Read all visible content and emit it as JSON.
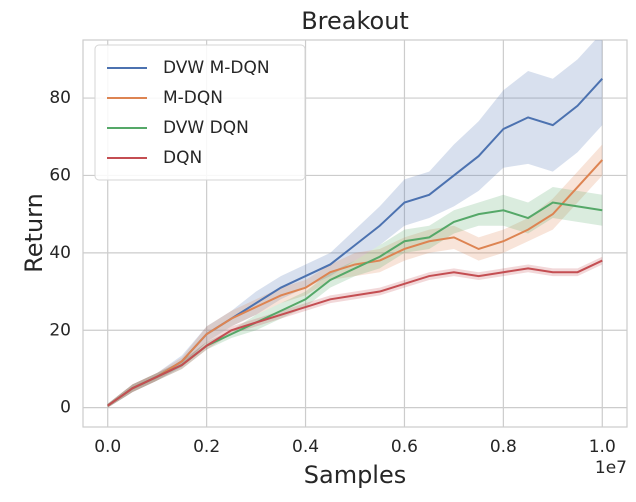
{
  "chart_data": {
    "type": "line",
    "title": "Breakout",
    "xlabel": "Samples",
    "ylabel": "Return",
    "x_offset_text": "1e7",
    "x": [
      0,
      0.05,
      0.1,
      0.15,
      0.2,
      0.25,
      0.3,
      0.35,
      0.4,
      0.45,
      0.5,
      0.55,
      0.6,
      0.65,
      0.7,
      0.75,
      0.8,
      0.85,
      0.9,
      0.95,
      1.0
    ],
    "series": [
      {
        "name": "DVW M-DQN",
        "color": "#4c72b0",
        "values": [
          0.5,
          5,
          8,
          12,
          19,
          23,
          27,
          31,
          34,
          37,
          42,
          47,
          53,
          55,
          60,
          65,
          72,
          75,
          73,
          78,
          85
        ],
        "lower": [
          0,
          4,
          7,
          10.5,
          17,
          21,
          24,
          28,
          31,
          34,
          38,
          42,
          47,
          49,
          52,
          56,
          62,
          63,
          61,
          66,
          73
        ],
        "upper": [
          1,
          6,
          9,
          13.5,
          21,
          25,
          30,
          34,
          37,
          40,
          46,
          52,
          59,
          61,
          68,
          74,
          82,
          87,
          85,
          90,
          97
        ]
      },
      {
        "name": "M-DQN",
        "color": "#dd8452",
        "values": [
          0.5,
          5,
          8,
          12,
          19,
          23,
          26,
          29,
          31,
          35,
          37,
          38,
          41,
          43,
          44,
          41,
          43,
          46,
          50,
          57,
          64
        ],
        "lower": [
          0,
          4,
          7,
          11,
          17,
          21,
          24,
          27,
          29,
          33,
          34,
          35,
          38,
          40,
          41,
          38,
          40,
          43,
          46,
          53,
          60
        ],
        "upper": [
          1,
          6,
          9,
          13,
          21,
          25,
          28,
          31,
          33,
          37,
          40,
          41,
          44,
          46,
          47,
          44,
          46,
          49,
          54,
          61,
          68
        ]
      },
      {
        "name": "DVW DQN",
        "color": "#55a868",
        "values": [
          0.5,
          5,
          8,
          11,
          16,
          19,
          22,
          25,
          28,
          33,
          36,
          39,
          43,
          44,
          48,
          50,
          51,
          49,
          53,
          52,
          51
        ],
        "lower": [
          0,
          4,
          7,
          10,
          15,
          18,
          20,
          23,
          26,
          31,
          34,
          36,
          40,
          41,
          45,
          47,
          47,
          45,
          49,
          48,
          47
        ],
        "upper": [
          1,
          6,
          9,
          12,
          17,
          20,
          24,
          27,
          30,
          35,
          38,
          42,
          46,
          47,
          51,
          53,
          55,
          53,
          57,
          56,
          55
        ]
      },
      {
        "name": "DQN",
        "color": "#c44e52",
        "values": [
          0.5,
          5,
          8,
          11,
          16,
          20,
          22,
          24,
          26,
          28,
          29,
          30,
          32,
          34,
          35,
          34,
          35,
          36,
          35,
          35,
          38
        ],
        "lower": [
          0,
          4,
          7,
          10,
          15,
          19,
          21,
          23,
          25,
          27,
          28,
          29,
          31,
          33,
          34,
          33,
          34,
          35,
          34,
          34,
          37
        ],
        "upper": [
          1,
          6,
          9,
          12,
          17,
          21,
          23,
          25,
          27,
          29,
          30,
          31,
          33,
          35,
          36,
          35,
          36,
          37,
          36,
          36,
          39
        ]
      }
    ],
    "xlim": [
      -0.05,
      1.05
    ],
    "ylim": [
      -5,
      95
    ],
    "xticks": [
      {
        "value": 0,
        "label": "0.0"
      },
      0.2,
      0.4,
      0.6,
      0.8,
      {
        "value": 1,
        "label": "1.0"
      }
    ],
    "yticks": [
      0,
      20,
      40,
      60,
      80
    ],
    "grid": true,
    "legend": "upper left"
  }
}
